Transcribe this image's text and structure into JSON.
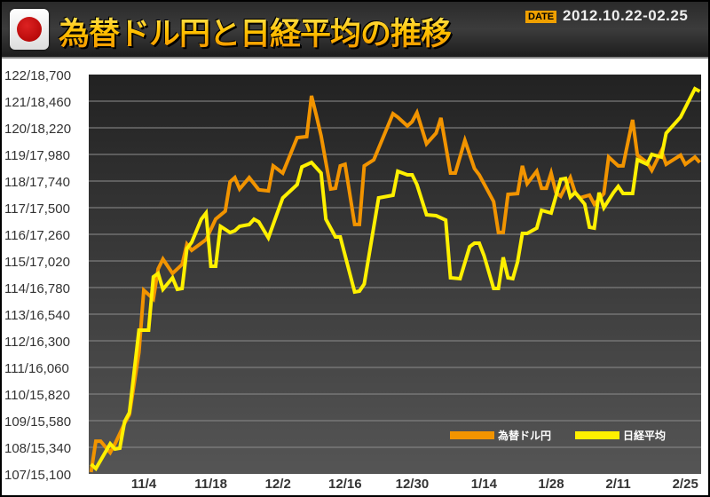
{
  "header": {
    "title": "為替ドル円と日経平均の推移",
    "date_badge": "DATE",
    "date_range": "2012.10.22-02.25",
    "flag_icon": "japan-flag-icon"
  },
  "colors": {
    "usdjpy": "#f29400",
    "nikkei": "#fff000",
    "plot_bg_top": "#222222",
    "plot_bg_bottom": "#555555"
  },
  "chart_data": {
    "type": "line",
    "title": "為替ドル円と日経平均の推移",
    "y_tick_labels": [
      "107/15,100",
      "108/15,340",
      "109/15,580",
      "110/15,820",
      "111/16,060",
      "112/16,300",
      "113/16,540",
      "114/16,780",
      "115/17,020",
      "116/17,260",
      "117/17,500",
      "118/17,740",
      "119/17,980",
      "120/18,220",
      "121/18,460",
      "122/18,700"
    ],
    "ylim_usdjpy": [
      107,
      122
    ],
    "ylim_nikkei": [
      15100,
      18700
    ],
    "x_ticks": [
      {
        "date": "2012-11-04",
        "label": "11/4"
      },
      {
        "date": "2012-11-18",
        "label": "11/18"
      },
      {
        "date": "2012-12-02",
        "label": "12/2"
      },
      {
        "date": "2012-12-16",
        "label": "12/16"
      },
      {
        "date": "2012-12-30",
        "label": "12/30"
      },
      {
        "date": "2013-01-14",
        "label": "1/14"
      },
      {
        "date": "2013-01-28",
        "label": "1/28"
      },
      {
        "date": "2013-02-11",
        "label": "2/11"
      },
      {
        "date": "2013-02-25",
        "label": "2/25"
      }
    ],
    "grid": true,
    "legend_position": "bottom-right",
    "series": [
      {
        "name": "為替ドル円",
        "axis": "usdjpy",
        "points": [
          [
            "2012-10-24",
            107.07
          ],
          [
            "2012-10-25",
            108.23
          ],
          [
            "2012-10-26",
            108.23
          ],
          [
            "2012-10-28",
            107.8
          ],
          [
            "2012-10-29",
            108.13
          ],
          [
            "2012-10-31",
            108.9
          ],
          [
            "2012-11-01",
            109.23
          ],
          [
            "2012-11-03",
            111.57
          ],
          [
            "2012-11-04",
            113.9
          ],
          [
            "2012-11-06",
            113.57
          ],
          [
            "2012-11-07",
            114.7
          ],
          [
            "2012-11-08",
            115.07
          ],
          [
            "2012-11-10",
            114.53
          ],
          [
            "2012-11-12",
            114.87
          ],
          [
            "2012-11-13",
            115.63
          ],
          [
            "2012-11-14",
            115.4
          ],
          [
            "2012-11-17",
            115.8
          ],
          [
            "2012-11-19",
            116.57
          ],
          [
            "2012-11-21",
            116.87
          ],
          [
            "2012-11-22",
            117.97
          ],
          [
            "2012-11-23",
            118.13
          ],
          [
            "2012-11-24",
            117.7
          ],
          [
            "2012-11-26",
            118.13
          ],
          [
            "2012-11-28",
            117.67
          ],
          [
            "2012-11-30",
            117.63
          ],
          [
            "2012-12-01",
            118.57
          ],
          [
            "2012-12-03",
            118.3
          ],
          [
            "2012-12-06",
            119.63
          ],
          [
            "2012-12-08",
            119.67
          ],
          [
            "2012-12-09",
            121.2
          ],
          [
            "2012-12-10",
            120.47
          ],
          [
            "2012-12-11",
            119.7
          ],
          [
            "2012-12-13",
            117.7
          ],
          [
            "2012-12-14",
            117.73
          ],
          [
            "2012-12-15",
            118.57
          ],
          [
            "2012-12-16",
            118.63
          ],
          [
            "2012-12-18",
            116.37
          ],
          [
            "2012-12-19",
            116.37
          ],
          [
            "2012-12-20",
            118.57
          ],
          [
            "2012-12-22",
            118.8
          ],
          [
            "2012-12-26",
            120.53
          ],
          [
            "2012-12-27",
            120.4
          ],
          [
            "2012-12-29",
            120.07
          ],
          [
            "2012-12-30",
            120.23
          ],
          [
            "2012-12-31",
            120.57
          ],
          [
            "2013-01-02",
            119.4
          ],
          [
            "2013-01-04",
            119.8
          ],
          [
            "2013-01-05",
            120.37
          ],
          [
            "2013-01-07",
            118.3
          ],
          [
            "2013-01-08",
            118.3
          ],
          [
            "2013-01-10",
            119.53
          ],
          [
            "2013-01-12",
            118.47
          ],
          [
            "2013-01-13",
            118.23
          ],
          [
            "2013-01-16",
            117.23
          ],
          [
            "2013-01-17",
            116.07
          ],
          [
            "2013-01-18",
            116.07
          ],
          [
            "2013-01-19",
            117.5
          ],
          [
            "2013-01-21",
            117.53
          ],
          [
            "2013-01-22",
            118.57
          ],
          [
            "2013-01-23",
            117.9
          ],
          [
            "2013-01-25",
            118.37
          ],
          [
            "2013-01-26",
            117.73
          ],
          [
            "2013-01-27",
            117.73
          ],
          [
            "2013-01-28",
            118.3
          ],
          [
            "2013-01-29",
            117.57
          ],
          [
            "2013-01-30",
            117.43
          ],
          [
            "2013-02-01",
            118.13
          ],
          [
            "2013-02-02",
            117.57
          ],
          [
            "2013-02-03",
            117.37
          ],
          [
            "2013-02-05",
            117.47
          ],
          [
            "2013-02-06",
            117.13
          ],
          [
            "2013-02-08",
            117.53
          ],
          [
            "2013-02-09",
            118.9
          ],
          [
            "2013-02-11",
            118.57
          ],
          [
            "2013-02-12",
            118.57
          ],
          [
            "2013-02-14",
            120.3
          ],
          [
            "2013-02-15",
            118.97
          ],
          [
            "2013-02-17",
            118.7
          ],
          [
            "2013-02-18",
            118.4
          ],
          [
            "2013-02-20",
            119.13
          ],
          [
            "2013-02-21",
            118.63
          ],
          [
            "2013-02-24",
            118.97
          ],
          [
            "2013-02-25",
            118.63
          ],
          [
            "2013-02-27",
            118.9
          ],
          [
            "2013-02-28",
            118.7
          ]
        ]
      },
      {
        "name": "日経平均",
        "axis": "nikkei",
        "points": [
          [
            "2012-10-24",
            15188
          ],
          [
            "2012-10-25",
            15148
          ],
          [
            "2012-10-28",
            15372
          ],
          [
            "2012-10-29",
            15324
          ],
          [
            "2012-10-30",
            15332
          ],
          [
            "2012-10-31",
            15572
          ],
          [
            "2012-11-01",
            15652
          ],
          [
            "2012-11-03",
            16396
          ],
          [
            "2012-11-05",
            16396
          ],
          [
            "2012-11-06",
            16876
          ],
          [
            "2012-11-07",
            16908
          ],
          [
            "2012-11-08",
            16764
          ],
          [
            "2012-11-10",
            16868
          ],
          [
            "2012-11-11",
            16764
          ],
          [
            "2012-11-12",
            16772
          ],
          [
            "2012-11-13",
            17132
          ],
          [
            "2012-11-14",
            17188
          ],
          [
            "2012-11-16",
            17396
          ],
          [
            "2012-11-17",
            17452
          ],
          [
            "2012-11-18",
            16972
          ],
          [
            "2012-11-19",
            16972
          ],
          [
            "2012-11-20",
            17332
          ],
          [
            "2012-11-22",
            17276
          ],
          [
            "2012-11-23",
            17292
          ],
          [
            "2012-11-24",
            17332
          ],
          [
            "2012-11-26",
            17348
          ],
          [
            "2012-11-27",
            17396
          ],
          [
            "2012-11-28",
            17372
          ],
          [
            "2012-11-30",
            17228
          ],
          [
            "2012-12-03",
            17588
          ],
          [
            "2012-12-06",
            17708
          ],
          [
            "2012-12-07",
            17868
          ],
          [
            "2012-12-09",
            17908
          ],
          [
            "2012-12-11",
            17812
          ],
          [
            "2012-12-12",
            17396
          ],
          [
            "2012-12-14",
            17236
          ],
          [
            "2012-12-15",
            17236
          ],
          [
            "2012-12-18",
            16740
          ],
          [
            "2012-12-19",
            16748
          ],
          [
            "2012-12-20",
            16812
          ],
          [
            "2012-12-23",
            17588
          ],
          [
            "2012-12-26",
            17612
          ],
          [
            "2012-12-27",
            17828
          ],
          [
            "2012-12-29",
            17796
          ],
          [
            "2012-12-30",
            17796
          ],
          [
            "2012-12-31",
            17708
          ],
          [
            "2013-01-02",
            17436
          ],
          [
            "2013-01-04",
            17428
          ],
          [
            "2013-01-06",
            17388
          ],
          [
            "2013-01-07",
            16868
          ],
          [
            "2013-01-09",
            16860
          ],
          [
            "2013-01-11",
            17148
          ],
          [
            "2013-01-12",
            17180
          ],
          [
            "2013-01-13",
            17180
          ],
          [
            "2013-01-14",
            17068
          ],
          [
            "2013-01-16",
            16772
          ],
          [
            "2013-01-17",
            16772
          ],
          [
            "2013-01-18",
            17052
          ],
          [
            "2013-01-19",
            16868
          ],
          [
            "2013-01-20",
            16860
          ],
          [
            "2013-01-21",
            17012
          ],
          [
            "2013-01-22",
            17268
          ],
          [
            "2013-01-23",
            17268
          ],
          [
            "2013-01-25",
            17316
          ],
          [
            "2013-01-26",
            17476
          ],
          [
            "2013-01-28",
            17452
          ],
          [
            "2013-01-30",
            17756
          ],
          [
            "2013-01-31",
            17764
          ],
          [
            "2013-02-01",
            17596
          ],
          [
            "2013-02-02",
            17636
          ],
          [
            "2013-02-04",
            17532
          ],
          [
            "2013-02-05",
            17324
          ],
          [
            "2013-02-06",
            17316
          ],
          [
            "2013-02-07",
            17636
          ],
          [
            "2013-02-08",
            17500
          ],
          [
            "2013-02-10",
            17636
          ],
          [
            "2013-02-11",
            17692
          ],
          [
            "2013-02-12",
            17628
          ],
          [
            "2013-02-14",
            17628
          ],
          [
            "2013-02-15",
            17932
          ],
          [
            "2013-02-17",
            17892
          ],
          [
            "2013-02-18",
            17980
          ],
          [
            "2013-02-20",
            17956
          ],
          [
            "2013-02-21",
            18172
          ],
          [
            "2013-02-24",
            18316
          ],
          [
            "2013-02-27",
            18572
          ],
          [
            "2013-02-28",
            18548
          ]
        ]
      }
    ]
  }
}
